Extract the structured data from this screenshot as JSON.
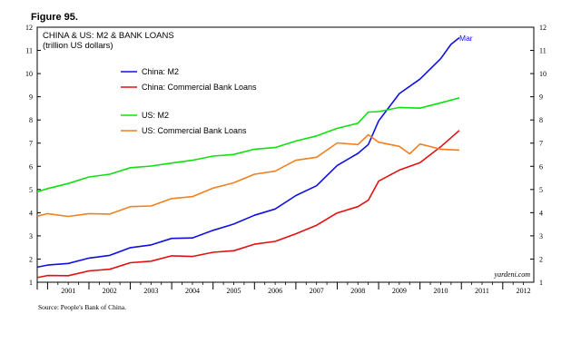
{
  "figure_label": "Figure 95.",
  "source_note": "Source: People's Bank of China.",
  "credit": "yardeni.com",
  "chart_data": {
    "type": "line",
    "title": "CHINA & US: M2 & BANK LOANS",
    "subtitle": "(trillion US dollars)",
    "xlim": [
      2000.75,
      2012.75
    ],
    "ylim": [
      1,
      12
    ],
    "yticks": [
      "1",
      "2",
      "3",
      "4",
      "5",
      "6",
      "7",
      "8",
      "9",
      "10",
      "11",
      "12"
    ],
    "xticks": [
      "2001",
      "2002",
      "2003",
      "2004",
      "2005",
      "2006",
      "2007",
      "2008",
      "2009",
      "2010",
      "2011",
      "2012"
    ],
    "end_label": {
      "text": "Mar",
      "series": 0,
      "color": "#1010e0"
    },
    "series": [
      {
        "name": "China: M2",
        "color": "#1010e0",
        "x": [
          2000.75,
          2001.0,
          2001.5,
          2002.0,
          2002.5,
          2003.0,
          2003.5,
          2004.0,
          2004.5,
          2005.0,
          2005.5,
          2006.0,
          2006.5,
          2007.0,
          2007.5,
          2008.0,
          2008.5,
          2008.75,
          2009.0,
          2009.5,
          2010.0,
          2010.5,
          2010.75,
          2010.95
        ],
        "y": [
          1.65,
          1.7,
          1.85,
          2.0,
          2.2,
          2.45,
          2.65,
          2.85,
          2.95,
          3.2,
          3.55,
          3.85,
          4.2,
          4.7,
          5.2,
          6.0,
          6.6,
          6.9,
          8.0,
          9.1,
          9.8,
          10.6,
          11.3,
          11.55
        ]
      },
      {
        "name": "China: Commercial Bank Loans",
        "color": "#e01010",
        "x": [
          2000.75,
          2001.0,
          2001.5,
          2002.0,
          2002.5,
          2003.0,
          2003.5,
          2004.0,
          2004.5,
          2005.0,
          2005.5,
          2006.0,
          2006.5,
          2007.0,
          2007.5,
          2008.0,
          2008.5,
          2008.75,
          2009.0,
          2009.5,
          2010.0,
          2010.5,
          2010.95
        ],
        "y": [
          1.2,
          1.25,
          1.32,
          1.45,
          1.6,
          1.8,
          1.95,
          2.1,
          2.15,
          2.25,
          2.4,
          2.6,
          2.8,
          3.05,
          3.5,
          3.95,
          4.3,
          4.5,
          5.4,
          5.8,
          6.2,
          6.8,
          7.55
        ]
      },
      {
        "name": "US: M2",
        "color": "#10e010",
        "x": [
          2000.75,
          2001.0,
          2001.5,
          2002.0,
          2002.5,
          2003.0,
          2003.5,
          2004.0,
          2004.5,
          2005.0,
          2005.5,
          2006.0,
          2006.5,
          2007.0,
          2007.5,
          2008.0,
          2008.5,
          2008.75,
          2009.0,
          2009.5,
          2010.0,
          2010.5,
          2010.95
        ],
        "y": [
          4.9,
          5.0,
          5.3,
          5.5,
          5.7,
          5.9,
          6.05,
          6.1,
          6.3,
          6.4,
          6.55,
          6.7,
          6.85,
          7.05,
          7.35,
          7.6,
          7.9,
          8.3,
          8.4,
          8.5,
          8.55,
          8.7,
          8.95
        ]
      },
      {
        "name": "US: Commercial Bank Loans",
        "color": "#f08020",
        "x": [
          2000.75,
          2001.0,
          2001.5,
          2002.0,
          2002.5,
          2003.0,
          2003.5,
          2004.0,
          2004.5,
          2005.0,
          2005.5,
          2006.0,
          2006.5,
          2007.0,
          2007.5,
          2008.0,
          2008.5,
          2008.75,
          2009.0,
          2009.5,
          2009.75,
          2010.0,
          2010.5,
          2010.95
        ],
        "y": [
          3.85,
          3.9,
          3.9,
          3.9,
          4.0,
          4.2,
          4.35,
          4.55,
          4.75,
          5.0,
          5.35,
          5.6,
          5.85,
          6.2,
          6.45,
          6.95,
          7.0,
          7.3,
          7.1,
          6.8,
          6.6,
          6.9,
          6.8,
          6.7
        ]
      }
    ]
  }
}
